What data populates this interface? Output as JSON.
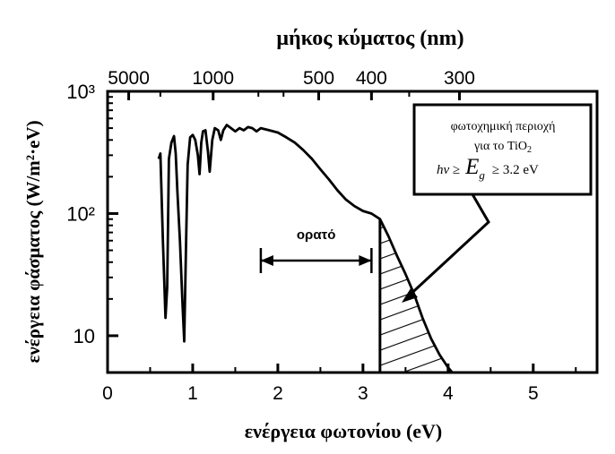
{
  "chart_data": {
    "type": "line",
    "title": "",
    "x_axis": {
      "label": "ενέργεια φωτονίου (eV)",
      "range": [
        0,
        5.75
      ],
      "ticks": [
        0,
        1,
        2,
        3,
        4,
        5
      ],
      "tick_labels": [
        "0",
        "1",
        "2",
        "3",
        "4",
        "5"
      ]
    },
    "y_axis": {
      "label": "ενέργεια φάσματος (W/m²·eV)",
      "scale": "log",
      "range": [
        5,
        1000
      ],
      "ticks": [
        10,
        100,
        1000
      ],
      "tick_labels": [
        "10",
        "10²",
        "10³"
      ]
    },
    "top_axis": {
      "label": "μήκος κύματος (nm)",
      "ticks_nm": [
        5000,
        1000,
        500,
        400,
        300
      ],
      "tick_labels": [
        "5000",
        "1000",
        "500",
        "400",
        "300"
      ]
    },
    "series": [
      {
        "x": [
          0.6,
          0.62,
          0.65,
          0.68,
          0.7,
          0.72,
          0.75,
          0.78,
          0.8,
          0.82,
          0.85,
          0.88,
          0.9,
          0.92,
          0.94,
          0.97,
          1.0,
          1.03,
          1.06,
          1.08,
          1.1,
          1.12,
          1.15,
          1.18,
          1.2,
          1.23,
          1.26,
          1.3,
          1.33,
          1.36,
          1.4,
          1.45,
          1.5,
          1.55,
          1.6,
          1.65,
          1.7,
          1.75,
          1.8,
          1.9,
          2.0,
          2.1,
          2.2,
          2.3,
          2.4,
          2.5,
          2.6,
          2.7,
          2.8,
          2.9,
          3.0,
          3.1,
          3.2,
          3.3,
          3.4,
          3.5,
          3.6,
          3.7,
          3.8,
          3.9,
          4.0,
          4.05
        ],
        "y": [
          280,
          310,
          60,
          14,
          25,
          280,
          380,
          430,
          310,
          150,
          60,
          18,
          9,
          50,
          250,
          420,
          440,
          400,
          300,
          210,
          380,
          470,
          480,
          320,
          220,
          400,
          500,
          480,
          400,
          480,
          530,
          500,
          470,
          500,
          480,
          510,
          500,
          470,
          500,
          480,
          460,
          420,
          380,
          330,
          280,
          230,
          190,
          155,
          130,
          115,
          105,
          100,
          90,
          65,
          45,
          32,
          22,
          14,
          9.5,
          7,
          5.5,
          5
        ]
      }
    ],
    "annotations": {
      "visible_label": "ορατό",
      "visible_range": [
        1.8,
        3.1
      ],
      "box_line1": "φωτοχημική περιοχή",
      "box_line2": "για το TiO",
      "box_line2_sub": "2",
      "box_hv": "hν ≥",
      "box_eg": "E",
      "box_eg_sub": "g",
      "box_value": "≥ 3.2 eV",
      "shaded_region_start": 3.2
    }
  }
}
